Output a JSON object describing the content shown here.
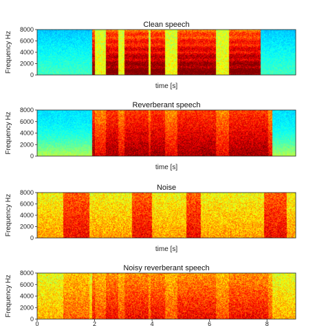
{
  "chart_data": [
    {
      "type": "heatmap",
      "title": "Clean speech",
      "xlabel": "time [s]",
      "ylabel": "Frequency Hz",
      "xlim": [
        0,
        9
      ],
      "ylim": [
        0,
        8000
      ],
      "yticks": [
        0,
        2000,
        4000,
        6000,
        8000
      ],
      "xticks": [],
      "colormap": "jet",
      "speech_active_range_s": [
        1.9,
        7.8
      ],
      "background_level": "low"
    },
    {
      "type": "heatmap",
      "title": "Reverberant speech",
      "xlabel": "time [s]",
      "ylabel": "Frequency Hz",
      "xlim": [
        0,
        9
      ],
      "ylim": [
        0,
        8000
      ],
      "yticks": [
        0,
        2000,
        4000,
        6000,
        8000
      ],
      "xticks": [],
      "colormap": "jet",
      "speech_active_range_s": [
        1.9,
        8.2
      ],
      "background_level": "low"
    },
    {
      "type": "heatmap",
      "title": "Noise",
      "xlabel": "time [s]",
      "ylabel": "Frequency Hz",
      "xlim": [
        0,
        9
      ],
      "ylim": [
        0,
        8000
      ],
      "yticks": [
        0,
        2000,
        4000,
        6000,
        8000
      ],
      "xticks": [],
      "colormap": "jet",
      "background_level": "high"
    },
    {
      "type": "heatmap",
      "title": "Noisy reverberant speech",
      "xlabel": "",
      "ylabel": "Frequency Hz",
      "xlim": [
        0,
        9
      ],
      "ylim": [
        0,
        8000
      ],
      "yticks": [
        0,
        2000,
        4000,
        6000,
        8000
      ],
      "xticks": [
        0,
        2,
        4,
        6,
        8
      ],
      "colormap": "jet",
      "background_level": "high"
    }
  ]
}
